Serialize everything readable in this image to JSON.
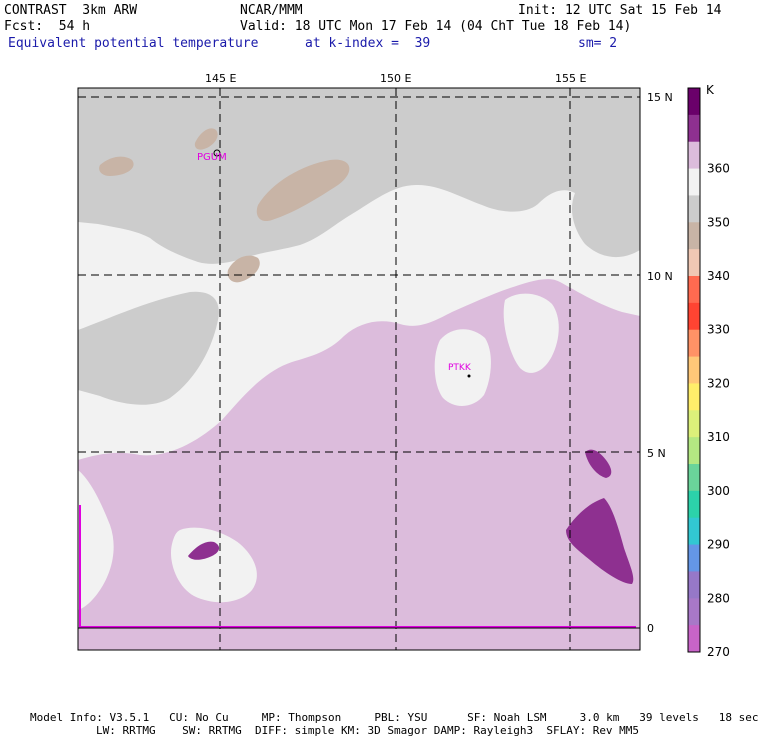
{
  "header": {
    "title_left": "CONTRAST  3km ARW",
    "org": "NCAR/MMM",
    "init": "Init: 12 UTC Sat 15 Feb 14",
    "fcst": "Fcst:  54 h",
    "valid": "Valid: 18 UTC Mon 17 Feb 14 (04 ChT Tue 18 Feb 14)",
    "field": "Equivalent potential temperature",
    "level": "at k-index =  39",
    "smooth": "sm= 2"
  },
  "map": {
    "lon_labels": [
      "145 E",
      "150 E",
      "155 E"
    ],
    "lat_labels": [
      "15 N",
      "10 N",
      "5 N",
      "0"
    ],
    "stations": [
      "PGUM",
      "PTKK"
    ]
  },
  "colorbar": {
    "unit": "K",
    "labels": [
      "360",
      "350",
      "340",
      "330",
      "320",
      "310",
      "300",
      "290",
      "280",
      "270"
    ],
    "colors": [
      "#6a006a",
      "#8e3090",
      "#dcbcdc",
      "#f2f2f2",
      "#cccccc",
      "#c8b4a6",
      "#f0c8b4",
      "#ff6a50",
      "#ff4432",
      "#ff9266",
      "#ffc878",
      "#ffee6a",
      "#dcf07a",
      "#b4e882",
      "#6ad49a",
      "#2cd2aa",
      "#32c8d2",
      "#6496e6",
      "#9678c8",
      "#a878c8",
      "#c864c8"
    ]
  },
  "footer": {
    "line1": "Model Info: V3.5.1   CU: No Cu     MP: Thompson     PBL: YSU      SF: Noah LSM     3.0 km   39 levels   18 sec",
    "line2": "LW: RRTMG    SW: RRTMG  DIFF: simple KM: 3D Smagor DAMP: Rayleigh3  SFLAY: Rev MM5"
  }
}
